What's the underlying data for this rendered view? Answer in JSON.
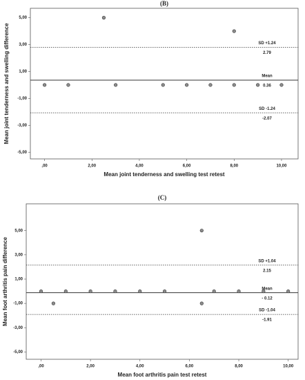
{
  "chart_data": [
    {
      "type": "scatter",
      "title": "(B)",
      "xlabel": "Mean joint tenderness and swelling test retest",
      "ylabel": "Mean joint tenderness and swelling  difference",
      "x": [
        0,
        1,
        2.5,
        3,
        5,
        6,
        7,
        8,
        8,
        9,
        10
      ],
      "values": [
        0,
        0,
        5,
        0,
        0,
        0,
        0,
        0,
        4,
        0,
        0
      ],
      "color": "#8c8c8c",
      "xlim": [
        -0.6,
        10.7
      ],
      "ylim": [
        -5.5,
        5.7
      ],
      "xticks": [
        {
          "value": 0,
          "label": ",00"
        },
        {
          "value": 2,
          "label": "2,00"
        },
        {
          "value": 4,
          "label": "4,00"
        },
        {
          "value": 6,
          "label": "6,00"
        },
        {
          "value": 8,
          "label": "8,00"
        },
        {
          "value": 10,
          "label": "10,00"
        }
      ],
      "yticks": [
        {
          "value": 5,
          "label": "5,00"
        },
        {
          "value": 3,
          "label": "3,00"
        },
        {
          "value": 1,
          "label": "1,00"
        },
        {
          "value": -1,
          "label": "-1,00"
        },
        {
          "value": -3,
          "label": "-3,00"
        },
        {
          "value": -5,
          "label": "-5,00"
        }
      ],
      "lines": [
        {
          "label": "SD +1.24",
          "value": 2.79,
          "style": "dashed"
        },
        {
          "label": "Mean",
          "value": 0.36,
          "style": "solid"
        },
        {
          "label": "SD -1.24",
          "value": -2.07,
          "style": "dashed"
        }
      ]
    },
    {
      "type": "scatter",
      "title": "(C)",
      "xlabel": "Mean foot arthritis pain test retest",
      "ylabel": "Mean foot arthritis pain difference",
      "x": [
        0,
        0.5,
        1,
        2,
        3,
        4,
        5,
        6.5,
        6.5,
        7,
        8,
        9,
        10
      ],
      "values": [
        0,
        -1,
        0,
        0,
        0,
        0,
        0,
        5,
        -1,
        0,
        0,
        0,
        0
      ],
      "color": "#8c8c8c",
      "xlim": [
        -0.6,
        10.4
      ],
      "ylim": [
        -5.6,
        7.2
      ],
      "xticks": [
        {
          "value": 0,
          "label": ",00"
        },
        {
          "value": 2,
          "label": "2,00"
        },
        {
          "value": 4,
          "label": "4,00"
        },
        {
          "value": 6,
          "label": "6,00"
        },
        {
          "value": 8,
          "label": "8,00"
        },
        {
          "value": 10,
          "label": "10,00"
        }
      ],
      "yticks": [
        {
          "value": 5,
          "label": "5,00"
        },
        {
          "value": 3,
          "label": "3,00"
        },
        {
          "value": 1,
          "label": "1,00"
        },
        {
          "value": -1,
          "label": "-1,00"
        },
        {
          "value": -3,
          "label": "-3,00"
        },
        {
          "value": -5,
          "label": "-5,00"
        }
      ],
      "lines": [
        {
          "label": "SD +1.04",
          "value": 2.15,
          "style": "dashed"
        },
        {
          "label": "Mean",
          "value": -0.12,
          "value_label": "- 0.12",
          "style": "solid"
        },
        {
          "label": "SD -1.04",
          "value": -1.91,
          "style": "dashed"
        }
      ]
    }
  ]
}
